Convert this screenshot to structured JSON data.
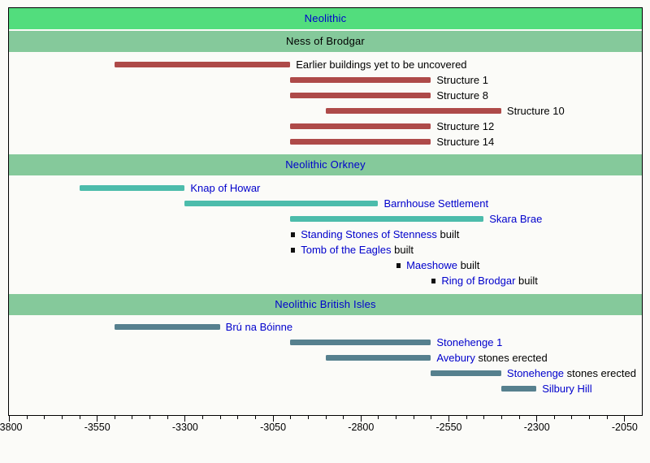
{
  "chart_data": {
    "type": "timeline",
    "title": {
      "label": "Neolithic",
      "color": "#0000cc",
      "bg": "#52dd7d"
    },
    "axis": {
      "min": -3800,
      "max": -2050,
      "major_step": 250,
      "minor_step": 50,
      "tick_labels": [
        "-3800",
        "-3550",
        "-3300",
        "-3050",
        "-2800",
        "-2550",
        "-2300",
        "-2050"
      ]
    },
    "marker_color": "#111111",
    "section_bg": "#85c99b",
    "sections": [
      {
        "label": "Ness of Brodgar",
        "label_color": "#000000",
        "bg": "#85c99b",
        "bar_color": "#ae4a49",
        "rows": [
          {
            "name": "Earlier buildings yet to be uncovered",
            "name_color": "#000000",
            "suffix": "",
            "start": -3500,
            "end": -3000
          },
          {
            "name": "Structure 1",
            "name_color": "#000000",
            "suffix": "",
            "start": -3000,
            "end": -2600
          },
          {
            "name": "Structure 8",
            "name_color": "#000000",
            "suffix": "",
            "start": -3000,
            "end": -2600
          },
          {
            "name": "Structure 10",
            "name_color": "#000000",
            "suffix": "",
            "start": -2900,
            "end": -2400
          },
          {
            "name": "Structure 12",
            "name_color": "#000000",
            "suffix": "",
            "start": -3000,
            "end": -2600
          },
          {
            "name": "Structure 14",
            "name_color": "#000000",
            "suffix": "",
            "start": -3000,
            "end": -2600
          }
        ]
      },
      {
        "label": "Neolithic Orkney",
        "label_color": "#0000cc",
        "bg": "#85c99b",
        "bar_color": "#4cbcab",
        "rows": [
          {
            "name": "Knap of Howar",
            "name_color": "#0000cc",
            "suffix": "",
            "start": -3600,
            "end": -3300
          },
          {
            "name": "Barnhouse Settlement",
            "name_color": "#0000cc",
            "suffix": "",
            "start": -3300,
            "end": -2750
          },
          {
            "name": "Skara Brae",
            "name_color": "#0000cc",
            "suffix": "",
            "start": -3000,
            "end": -2450
          },
          {
            "name": "Standing Stones of Stenness",
            "name_color": "#0000cc",
            "suffix": " built",
            "at": -3000
          },
          {
            "name": "Tomb of the Eagles",
            "name_color": "#0000cc",
            "suffix": " built",
            "at": -3000
          },
          {
            "name": "Maeshowe",
            "name_color": "#0000cc",
            "suffix": " built",
            "at": -2700
          },
          {
            "name": "Ring of Brodgar",
            "name_color": "#0000cc",
            "suffix": " built",
            "at": -2600
          }
        ]
      },
      {
        "label": "Neolithic British Isles",
        "label_color": "#0000cc",
        "bg": "#85c99b",
        "bar_color": "#56808e",
        "rows": [
          {
            "name": "Brú na Bóinne",
            "name_color": "#0000cc",
            "suffix": "",
            "start": -3500,
            "end": -3200
          },
          {
            "name": "Stonehenge 1",
            "name_color": "#0000cc",
            "suffix": "",
            "start": -3000,
            "end": -2600
          },
          {
            "name": "Avebury",
            "name_color": "#0000cc",
            "suffix": " stones erected",
            "start": -2900,
            "end": -2600
          },
          {
            "name": "Stonehenge",
            "name_color": "#0000cc",
            "suffix": " stones erected",
            "start": -2600,
            "end": -2400
          },
          {
            "name": "Silbury Hill",
            "name_color": "#0000cc",
            "suffix": "",
            "start": -2400,
            "end": -2300
          }
        ]
      }
    ]
  }
}
